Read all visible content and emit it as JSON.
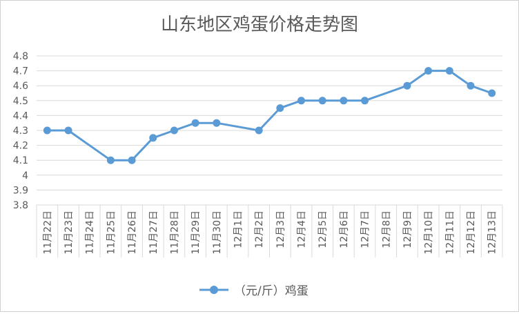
{
  "chart_data": {
    "type": "line",
    "title": "山东地区鸡蛋价格走势图",
    "categories": [
      "11月22日",
      "11月23日",
      "11月24日",
      "11月25日",
      "11月26日",
      "11月27日",
      "11月28日",
      "11月29日",
      "11月30日",
      "12月1日",
      "12月2日",
      "12月3日",
      "12月4日",
      "12月5日",
      "12月6日",
      "12月7日",
      "12月8日",
      "12月9日",
      "12月10日",
      "12月11日",
      "12月12日",
      "12月13日"
    ],
    "series": [
      {
        "name": "（元/斤）鸡蛋",
        "values": [
          4.3,
          4.3,
          null,
          4.1,
          4.1,
          4.25,
          4.3,
          4.35,
          4.35,
          null,
          4.3,
          4.45,
          4.5,
          4.5,
          4.5,
          4.5,
          null,
          4.6,
          4.7,
          4.7,
          4.6,
          4.55
        ]
      }
    ],
    "ylim": [
      3.8,
      4.8
    ],
    "ytick_step": 0.1,
    "yticks": [
      "3.8",
      "3.9",
      "4",
      "4.1",
      "4.2",
      "4.3",
      "4.4",
      "4.5",
      "4.6",
      "4.7",
      "4.8"
    ],
    "grid": true,
    "legend_position": "bottom",
    "line_color": "#5b9bd5",
    "gridline_color": "#d9d9d9",
    "text_color": "#595959"
  }
}
